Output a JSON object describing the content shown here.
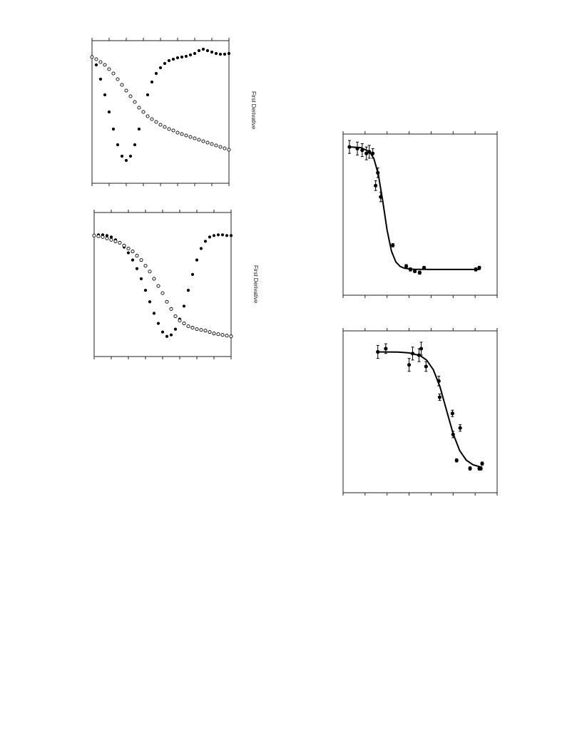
{
  "chart_data": [
    {
      "type": "scatter",
      "ylabel": "First Derivative",
      "xlim": [
        0,
        8
      ],
      "ylim": [
        0,
        1
      ],
      "xticks": [
        0,
        1,
        2,
        3,
        4,
        5,
        6,
        7,
        8
      ],
      "series": [
        {
          "marker": "filled",
          "color": "#000000",
          "x": [
            0,
            0.25,
            0.5,
            0.75,
            1,
            1.25,
            1.5,
            1.75,
            2,
            2.25,
            2.5,
            2.75,
            3,
            3.25,
            3.5,
            3.75,
            4,
            4.25,
            4.5,
            4.75,
            5,
            5.25,
            5.5,
            5.75,
            6,
            6.25,
            6.5,
            6.75,
            7,
            7.25,
            7.5,
            7.75,
            8
          ],
          "values": [
            0.885,
            0.83,
            0.73,
            0.62,
            0.5,
            0.38,
            0.27,
            0.19,
            0.16,
            0.19,
            0.27,
            0.38,
            0.5,
            0.62,
            0.71,
            0.77,
            0.81,
            0.84,
            0.86,
            0.87,
            0.88,
            0.885,
            0.89,
            0.9,
            0.91,
            0.93,
            0.94,
            0.93,
            0.92,
            0.91,
            0.905,
            0.905,
            0.91
          ]
        },
        {
          "marker": "open",
          "color": "#000000",
          "x": [
            0,
            0.25,
            0.5,
            0.75,
            1,
            1.25,
            1.5,
            1.75,
            2,
            2.25,
            2.5,
            2.75,
            3,
            3.25,
            3.5,
            3.75,
            4,
            4.25,
            4.5,
            4.75,
            5,
            5.25,
            5.5,
            5.75,
            6,
            6.25,
            6.5,
            6.75,
            7,
            7.25,
            7.5,
            7.75,
            8
          ],
          "values": [
            0.885,
            0.87,
            0.85,
            0.83,
            0.8,
            0.77,
            0.73,
            0.69,
            0.65,
            0.61,
            0.57,
            0.53,
            0.5,
            0.47,
            0.45,
            0.43,
            0.41,
            0.395,
            0.38,
            0.37,
            0.355,
            0.345,
            0.335,
            0.325,
            0.315,
            0.305,
            0.295,
            0.285,
            0.275,
            0.265,
            0.255,
            0.245,
            0.235
          ]
        }
      ]
    },
    {
      "type": "scatter",
      "ylabel": "First Derivative",
      "xlim": [
        0,
        8
      ],
      "ylim": [
        0,
        1
      ],
      "xticks": [
        0,
        1,
        2,
        3,
        4,
        5,
        6,
        7,
        8
      ],
      "series": [
        {
          "marker": "filled",
          "color": "#000000",
          "x": [
            0,
            0.25,
            0.5,
            0.75,
            1,
            1.25,
            1.5,
            1.75,
            2,
            2.25,
            2.5,
            2.75,
            3,
            3.25,
            3.5,
            3.75,
            4,
            4.25,
            4.5,
            4.75,
            5,
            5.25,
            5.5,
            5.75,
            6,
            6.25,
            6.5,
            6.75,
            7,
            7.25,
            7.5,
            7.75,
            8
          ],
          "values": [
            0.84,
            0.845,
            0.845,
            0.84,
            0.83,
            0.81,
            0.79,
            0.76,
            0.72,
            0.67,
            0.61,
            0.54,
            0.46,
            0.38,
            0.3,
            0.23,
            0.17,
            0.14,
            0.15,
            0.19,
            0.26,
            0.35,
            0.46,
            0.57,
            0.67,
            0.75,
            0.8,
            0.83,
            0.84,
            0.845,
            0.845,
            0.84,
            0.84
          ]
        },
        {
          "marker": "open",
          "color": "#000000",
          "x": [
            0,
            0.25,
            0.5,
            0.75,
            1,
            1.25,
            1.5,
            1.75,
            2,
            2.25,
            2.5,
            2.75,
            3,
            3.25,
            3.5,
            3.75,
            4,
            4.25,
            4.5,
            4.75,
            5,
            5.25,
            5.5,
            5.75,
            6,
            6.25,
            6.5,
            6.75,
            7,
            7.25,
            7.5,
            7.75,
            8
          ],
          "values": [
            0.84,
            0.835,
            0.83,
            0.82,
            0.81,
            0.8,
            0.79,
            0.77,
            0.75,
            0.73,
            0.7,
            0.67,
            0.63,
            0.59,
            0.54,
            0.49,
            0.44,
            0.38,
            0.33,
            0.28,
            0.25,
            0.23,
            0.21,
            0.2,
            0.19,
            0.185,
            0.18,
            0.17,
            0.16,
            0.155,
            0.15,
            0.145,
            0.14
          ]
        }
      ]
    },
    {
      "type": "scatter",
      "xlim": [
        0,
        7
      ],
      "ylim": [
        0,
        1
      ],
      "xticks": [
        0,
        1,
        2,
        3,
        4,
        5,
        6,
        7
      ],
      "series": [
        {
          "marker": "filled",
          "color": "#000000",
          "x": [
            0.29,
            0.65,
            0.87,
            1.06,
            1.19,
            1.35,
            1.58,
            1.48,
            1.71,
            2.26,
            2.87,
            3.06,
            3.26,
            3.48,
            3.68,
            6.03,
            6.19
          ],
          "values": [
            0.92,
            0.91,
            0.9,
            0.88,
            0.89,
            0.88,
            0.76,
            0.68,
            0.61,
            0.31,
            0.18,
            0.16,
            0.15,
            0.14,
            0.17,
            0.16,
            0.17
          ],
          "errors": [
            0.04,
            0.04,
            0.04,
            0.04,
            0.04,
            0.03,
            0.03,
            0.03,
            0.03,
            0.01,
            0.01,
            0.01,
            0.01,
            0.01,
            0.01,
            0.01,
            0.01
          ]
        },
        {
          "marker": "line",
          "color": "#000000",
          "x": [
            0.3,
            0.8,
            1.2,
            1.4,
            1.6,
            1.8,
            2,
            2.2,
            2.4,
            2.6,
            2.8,
            3.2,
            4,
            6.2
          ],
          "values": [
            0.92,
            0.916,
            0.891,
            0.848,
            0.751,
            0.587,
            0.404,
            0.273,
            0.206,
            0.178,
            0.167,
            0.161,
            0.16,
            0.16
          ]
        }
      ]
    },
    {
      "type": "scatter",
      "xlim": [
        0,
        7
      ],
      "ylim": [
        0,
        1
      ],
      "xticks": [
        0,
        1,
        2,
        3,
        4,
        5,
        6,
        7
      ],
      "series": [
        {
          "marker": "filled",
          "color": "#000000",
          "x": [
            1.58,
            1.94,
            3.0,
            3.16,
            3.45,
            3.55,
            3.77,
            4.35,
            4.39,
            4.97,
            5.0,
            5.32,
            5.16,
            5.77,
            6.19,
            6.26,
            6.32
          ],
          "values": [
            0.87,
            0.89,
            0.79,
            0.86,
            0.85,
            0.89,
            0.78,
            0.69,
            0.59,
            0.49,
            0.36,
            0.4,
            0.2,
            0.15,
            0.15,
            0.15,
            0.18
          ],
          "errors": [
            0.04,
            0.03,
            0.04,
            0.04,
            0.04,
            0.04,
            0.03,
            0.03,
            0.02,
            0.02,
            0.02,
            0.02,
            0.01,
            0.01,
            0.01,
            0.01,
            0.01
          ]
        },
        {
          "marker": "line",
          "color": "#000000",
          "x": [
            1.5,
            2.5,
            3.0,
            3.5,
            3.8,
            4.1,
            4.4,
            4.7,
            5.0,
            5.3,
            5.6,
            5.9,
            6.3
          ],
          "values": [
            0.87,
            0.869,
            0.864,
            0.847,
            0.819,
            0.76,
            0.656,
            0.51,
            0.365,
            0.26,
            0.201,
            0.173,
            0.157
          ]
        }
      ]
    }
  ]
}
